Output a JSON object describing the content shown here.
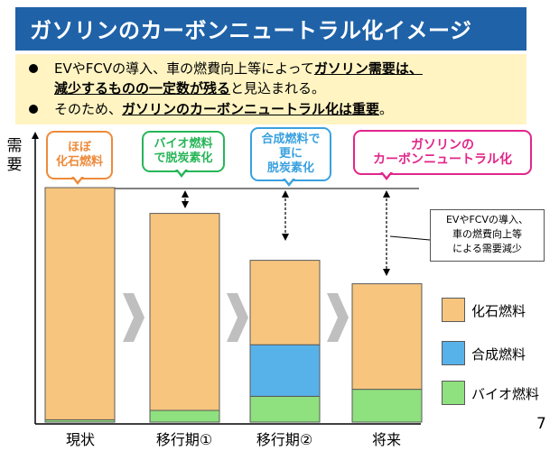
{
  "title": "ガソリンのカーボンニュートラル化イメージ",
  "bullets": {
    "b1_prefix": "EVやFCVの導入、車の燃費向上等によって",
    "b1_bold": "ガソリン需要は、",
    "b1_line2_bold": "減少するものの一定数が残る",
    "b1_suffix": "と見込まれる。",
    "b2_prefix": "そのため、",
    "b2_bold": "ガソリンのカーボンニュートラル化は重要",
    "b2_suffix": "。"
  },
  "ylabel": [
    "需",
    "要"
  ],
  "tags": {
    "t1": [
      "ほぼ",
      "化石燃料"
    ],
    "t2": [
      "バイオ燃料",
      "で脱炭素化"
    ],
    "t3": [
      "合成燃料で",
      "更に",
      "脱炭素化"
    ],
    "t4": [
      "ガソリンの",
      "カーボンニュートラル化"
    ]
  },
  "note": [
    "EVやFCVの導入、",
    "車の燃費向上等",
    "による需要減少"
  ],
  "legend": {
    "fossil": "化石燃料",
    "synthetic": "合成燃料",
    "bio": "バイオ燃料"
  },
  "page_number": "7",
  "colors": {
    "title_bg": "#1f62a8",
    "bullet_bg": "#fff4c2",
    "fossil": "#f7c57e",
    "synthetic": "#58b2ea",
    "bio": "#8fe07e",
    "tag1": "#ee8a3a",
    "tag2": "#27b558",
    "tag3": "#3aa1df",
    "tag4": "#e2268a"
  },
  "chart_data": {
    "type": "bar",
    "stacked": true,
    "categories": [
      "現状",
      "移行期①",
      "移行期②",
      "将来"
    ],
    "series": [
      {
        "name": "バイオ燃料",
        "values": [
          1,
          5,
          11,
          14
        ]
      },
      {
        "name": "合成燃料",
        "values": [
          0,
          0,
          22,
          0
        ]
      },
      {
        "name": "化石燃料",
        "values": [
          99,
          84,
          36,
          45
        ]
      }
    ],
    "ylabel": "需要",
    "ylim": [
      0,
      100
    ]
  }
}
